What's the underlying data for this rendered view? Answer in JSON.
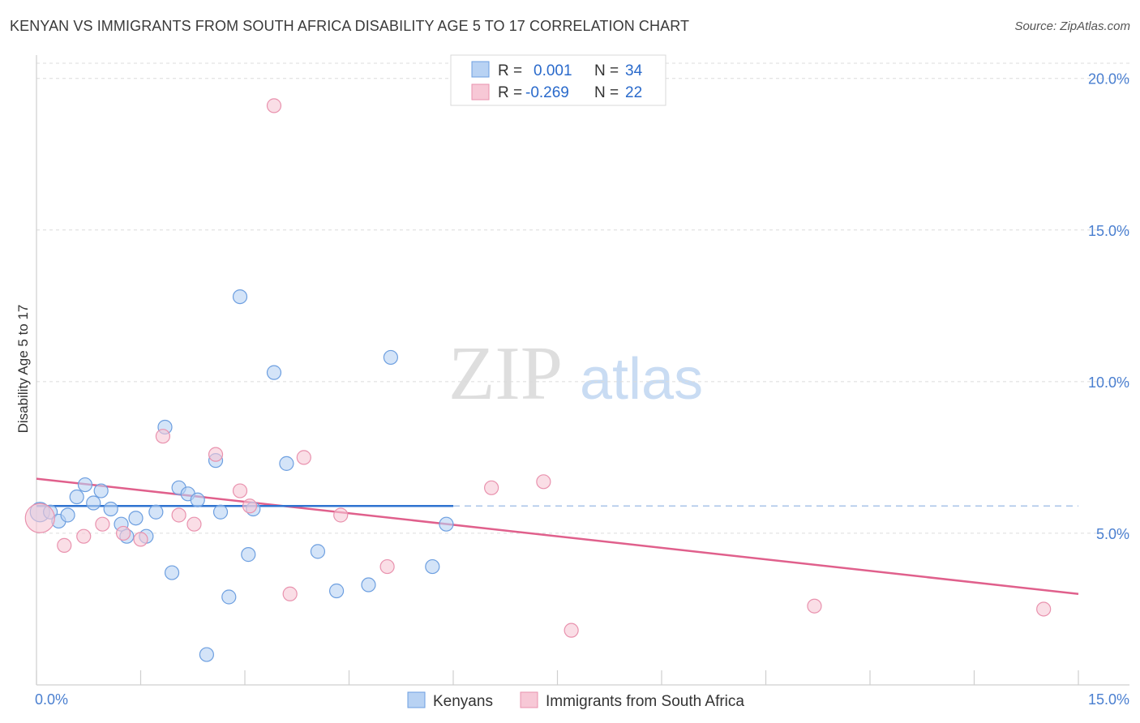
{
  "title": "KENYAN VS IMMIGRANTS FROM SOUTH AFRICA DISABILITY AGE 5 TO 17 CORRELATION CHART",
  "source": "Source: ZipAtlas.com",
  "watermark": {
    "zip": "ZIP",
    "atlas": "atlas"
  },
  "colors": {
    "blue_fill": "#b8d2f3",
    "blue_stroke": "#6d9fe0",
    "blue_line": "#2f73d0",
    "pink_fill": "#f7c8d6",
    "pink_stroke": "#e992ae",
    "pink_line": "#e0608c",
    "grid": "#dcdcdc",
    "tick_text": "#4a7fd0"
  },
  "legend": {
    "row1": {
      "r_label": "R =",
      "r_value": "0.001",
      "n_label": "N =",
      "n_value": "34"
    },
    "row2": {
      "r_label": "R =",
      "r_value": "-0.269",
      "n_label": "N =",
      "n_value": "22"
    }
  },
  "bottom_legend": {
    "series1": "Kenyans",
    "series2": "Immigrants from South Africa"
  },
  "chart_data": {
    "type": "scatter",
    "title": "KENYAN VS IMMIGRANTS FROM SOUTH AFRICA DISABILITY AGE 5 TO 17 CORRELATION CHART",
    "xlabel": "",
    "ylabel": "Disability Age 5 to 17",
    "xlim": [
      0,
      15
    ],
    "ylim": [
      0,
      20.5
    ],
    "x_tick_labels": [
      "0.0%",
      "15.0%"
    ],
    "y_tick_labels": [
      "5.0%",
      "10.0%",
      "15.0%",
      "20.0%"
    ],
    "y_ticks": [
      5,
      10,
      15,
      20
    ],
    "series": [
      {
        "name": "Kenyans",
        "R": 0.001,
        "N": 34,
        "trend": {
          "x": [
            0,
            6
          ],
          "y": [
            5.9,
            5.9
          ],
          "dashed_to_x": 15
        },
        "points": [
          [
            0.05,
            5.7
          ],
          [
            0.2,
            5.7
          ],
          [
            0.32,
            5.4
          ],
          [
            0.45,
            5.6
          ],
          [
            0.58,
            6.2
          ],
          [
            0.7,
            6.6
          ],
          [
            0.82,
            6.0
          ],
          [
            0.93,
            6.4
          ],
          [
            1.07,
            5.8
          ],
          [
            1.22,
            5.3
          ],
          [
            1.3,
            4.9
          ],
          [
            1.43,
            5.5
          ],
          [
            1.58,
            4.9
          ],
          [
            1.72,
            5.7
          ],
          [
            1.85,
            8.5
          ],
          [
            1.95,
            3.7
          ],
          [
            2.05,
            6.5
          ],
          [
            2.18,
            6.3
          ],
          [
            2.32,
            6.1
          ],
          [
            2.45,
            1.0
          ],
          [
            2.58,
            7.4
          ],
          [
            2.65,
            5.7
          ],
          [
            2.77,
            2.9
          ],
          [
            2.93,
            12.8
          ],
          [
            3.05,
            4.3
          ],
          [
            3.12,
            5.8
          ],
          [
            3.42,
            10.3
          ],
          [
            3.6,
            7.3
          ],
          [
            4.05,
            4.4
          ],
          [
            4.32,
            3.1
          ],
          [
            4.78,
            3.3
          ],
          [
            5.1,
            10.8
          ],
          [
            5.7,
            3.9
          ],
          [
            5.9,
            5.3
          ]
        ]
      },
      {
        "name": "Immigrants from South Africa",
        "R": -0.269,
        "N": 22,
        "trend": {
          "x": [
            0,
            15
          ],
          "y": [
            6.8,
            3.0
          ]
        },
        "points": [
          [
            0.05,
            5.5
          ],
          [
            0.4,
            4.6
          ],
          [
            0.68,
            4.9
          ],
          [
            0.95,
            5.3
          ],
          [
            1.25,
            5.0
          ],
          [
            1.5,
            4.8
          ],
          [
            1.82,
            8.2
          ],
          [
            2.05,
            5.6
          ],
          [
            2.27,
            5.3
          ],
          [
            2.58,
            7.6
          ],
          [
            2.93,
            6.4
          ],
          [
            3.07,
            5.9
          ],
          [
            3.42,
            19.1
          ],
          [
            3.65,
            3.0
          ],
          [
            3.85,
            7.5
          ],
          [
            4.38,
            5.6
          ],
          [
            5.05,
            3.9
          ],
          [
            6.55,
            6.5
          ],
          [
            7.3,
            6.7
          ],
          [
            7.7,
            1.8
          ],
          [
            11.2,
            2.6
          ],
          [
            14.5,
            2.5
          ]
        ]
      }
    ]
  }
}
